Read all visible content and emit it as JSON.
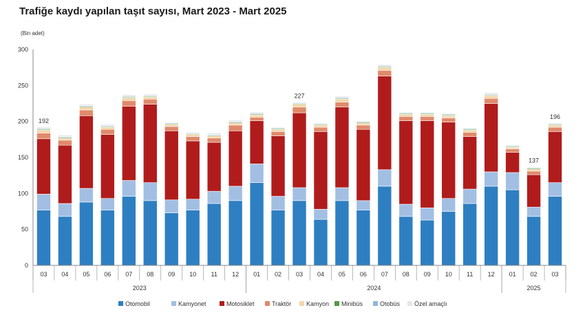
{
  "chart_data": {
    "type": "bar",
    "stacked": true,
    "title": "Trafiğe kaydı yapılan taşıt sayısı, Mart 2023 - Mart 2025",
    "unit_label": "(Bin adet)",
    "ylim": [
      0,
      300
    ],
    "yticks": [
      "0",
      "50",
      "100",
      "150",
      "200",
      "250",
      "300"
    ],
    "categories": [
      "03",
      "04",
      "05",
      "06",
      "07",
      "08",
      "09",
      "10",
      "11",
      "12",
      "01",
      "02",
      "03",
      "04",
      "05",
      "06",
      "07",
      "08",
      "09",
      "10",
      "11",
      "12",
      "01",
      "02",
      "03"
    ],
    "year_groups": [
      {
        "label": "2023",
        "start": 0,
        "end": 9
      },
      {
        "label": "2024",
        "start": 10,
        "end": 21
      },
      {
        "label": "2025",
        "start": 22,
        "end": 24
      }
    ],
    "series": [
      {
        "name": "Otomobil",
        "color": "#2e7fc1",
        "values": [
          77,
          68,
          88,
          77,
          96,
          90,
          73,
          77,
          86,
          90,
          115,
          77,
          90,
          64,
          90,
          77,
          110,
          68,
          63,
          75,
          86,
          110,
          105,
          68,
          96
        ]
      },
      {
        "name": "Kamyonet",
        "color": "#a2bfe3",
        "values": [
          22,
          18,
          19,
          16,
          22,
          25,
          18,
          15,
          17,
          20,
          26,
          19,
          18,
          14,
          18,
          13,
          23,
          17,
          17,
          18,
          20,
          20,
          24,
          13,
          19
        ]
      },
      {
        "name": "Motosiklet",
        "color": "#b01c1c",
        "values": [
          77,
          81,
          101,
          89,
          103,
          109,
          96,
          81,
          68,
          77,
          60,
          84,
          104,
          108,
          112,
          99,
          130,
          116,
          121,
          106,
          73,
          95,
          28,
          45,
          71
        ]
      },
      {
        "name": "Traktör",
        "color": "#e08a6c",
        "values": [
          8,
          7,
          8,
          7,
          8,
          7,
          6,
          6,
          6,
          8,
          5,
          6,
          8,
          6,
          7,
          6,
          8,
          6,
          6,
          6,
          6,
          7,
          5,
          5,
          6
        ]
      },
      {
        "name": "Kamyon",
        "color": "#f3d6a9",
        "values": [
          4,
          3,
          4,
          3,
          4,
          3,
          3,
          3,
          3,
          3,
          3,
          3,
          4,
          3,
          4,
          3,
          4,
          3,
          3,
          3,
          3,
          4,
          2,
          3,
          3
        ]
      },
      {
        "name": "Minibüs",
        "color": "#4f9a45",
        "values": [
          1,
          1,
          1,
          1,
          1,
          1,
          1,
          1,
          1,
          1,
          1,
          1,
          1,
          1,
          1,
          1,
          1,
          1,
          1,
          1,
          1,
          1,
          1,
          1,
          1
        ]
      },
      {
        "name": "Otobüs",
        "color": "#8fb8dc",
        "values": [
          1,
          1,
          1,
          1,
          1,
          1,
          1,
          1,
          1,
          1,
          1,
          1,
          1,
          1,
          1,
          1,
          1,
          1,
          1,
          1,
          1,
          1,
          1,
          1,
          1
        ]
      },
      {
        "name": "Özel amaçlı",
        "color": "#e6e6ea",
        "values": [
          2,
          2,
          2,
          2,
          2,
          2,
          1,
          1,
          2,
          2,
          2,
          1,
          1,
          1,
          2,
          1,
          2,
          1,
          1,
          1,
          1,
          2,
          1,
          1,
          1
        ]
      }
    ],
    "data_labels": [
      {
        "index": 0,
        "text": "192"
      },
      {
        "index": 12,
        "text": "227"
      },
      {
        "index": 23,
        "text": "137"
      },
      {
        "index": 24,
        "text": "196"
      }
    ]
  }
}
